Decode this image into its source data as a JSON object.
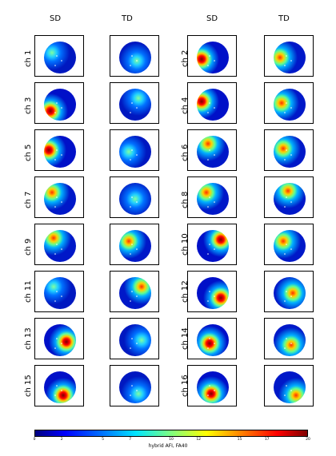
{
  "columns": [
    "SD",
    "TD",
    "SD",
    "TD"
  ],
  "rows": [
    [
      "ch 1",
      "ch 2"
    ],
    [
      "ch 3",
      "ch 4"
    ],
    [
      "ch 5",
      "ch 6"
    ],
    [
      "ch 7",
      "ch 8"
    ],
    [
      "ch 9",
      "ch 10"
    ],
    [
      "ch 11",
      "ch 12"
    ],
    [
      "ch 13",
      "ch 14"
    ],
    [
      "ch 15",
      "ch 16"
    ]
  ],
  "colorbar": {
    "label": "hybrid AFI, FA40",
    "ticks": [
      "0",
      "2",
      "5",
      "7",
      "10",
      "12",
      "15",
      "17",
      "20"
    ],
    "min": 0,
    "max": 20,
    "colormap": "jet"
  },
  "maps": [
    [
      {
        "hot": [
          0.25,
          0.35
        ],
        "i": 0.45
      },
      {
        "hot": [
          0.55,
          0.6
        ],
        "i": 0.35
      },
      {
        "hot": [
          0.15,
          0.55
        ],
        "i": 0.95
      },
      {
        "hot": [
          0.2,
          0.5
        ],
        "i": 0.7
      }
    ],
    [
      {
        "hot": [
          0.2,
          0.7
        ],
        "i": 0.95
      },
      {
        "hot": [
          0.6,
          0.3
        ],
        "i": 0.3
      },
      {
        "hot": [
          0.15,
          0.4
        ],
        "i": 0.95
      },
      {
        "hot": [
          0.25,
          0.45
        ],
        "i": 0.85
      }
    ],
    [
      {
        "hot": [
          0.15,
          0.45
        ],
        "i": 0.95
      },
      {
        "hot": [
          0.3,
          0.5
        ],
        "i": 0.3
      },
      {
        "hot": [
          0.35,
          0.25
        ],
        "i": 0.85
      },
      {
        "hot": [
          0.3,
          0.4
        ],
        "i": 0.75
      }
    ],
    [
      {
        "hot": [
          0.25,
          0.3
        ],
        "i": 0.8
      },
      {
        "hot": [
          0.5,
          0.5
        ],
        "i": 0.25
      },
      {
        "hot": [
          0.3,
          0.3
        ],
        "i": 0.85
      },
      {
        "hot": [
          0.45,
          0.25
        ],
        "i": 0.7
      }
    ],
    [
      {
        "hot": [
          0.3,
          0.25
        ],
        "i": 0.8
      },
      {
        "hot": [
          0.3,
          0.35
        ],
        "i": 0.7
      },
      {
        "hot": [
          0.75,
          0.3
        ],
        "i": 1.0
      },
      {
        "hot": [
          0.3,
          0.35
        ],
        "i": 0.7
      }
    ],
    [
      {
        "hot": [
          0.3,
          0.3
        ],
        "i": 0.6
      },
      {
        "hot": [
          0.7,
          0.3
        ],
        "i": 0.7
      },
      {
        "hot": [
          0.75,
          0.65
        ],
        "i": 1.0
      },
      {
        "hot": [
          0.6,
          0.5
        ],
        "i": 0.8
      }
    ],
    [
      {
        "hot": [
          0.7,
          0.55
        ],
        "i": 1.0
      },
      {
        "hot": [
          0.7,
          0.5
        ],
        "i": 0.4
      },
      {
        "hot": [
          0.4,
          0.6
        ],
        "i": 0.95
      },
      {
        "hot": [
          0.55,
          0.65
        ],
        "i": 0.7
      }
    ],
    [
      {
        "hot": [
          0.6,
          0.75
        ],
        "i": 1.0
      },
      {
        "hot": [
          0.6,
          0.7
        ],
        "i": 0.6
      },
      {
        "hot": [
          0.45,
          0.7
        ],
        "i": 0.95
      },
      {
        "hot": [
          0.7,
          0.75
        ],
        "i": 0.85
      }
    ]
  ]
}
